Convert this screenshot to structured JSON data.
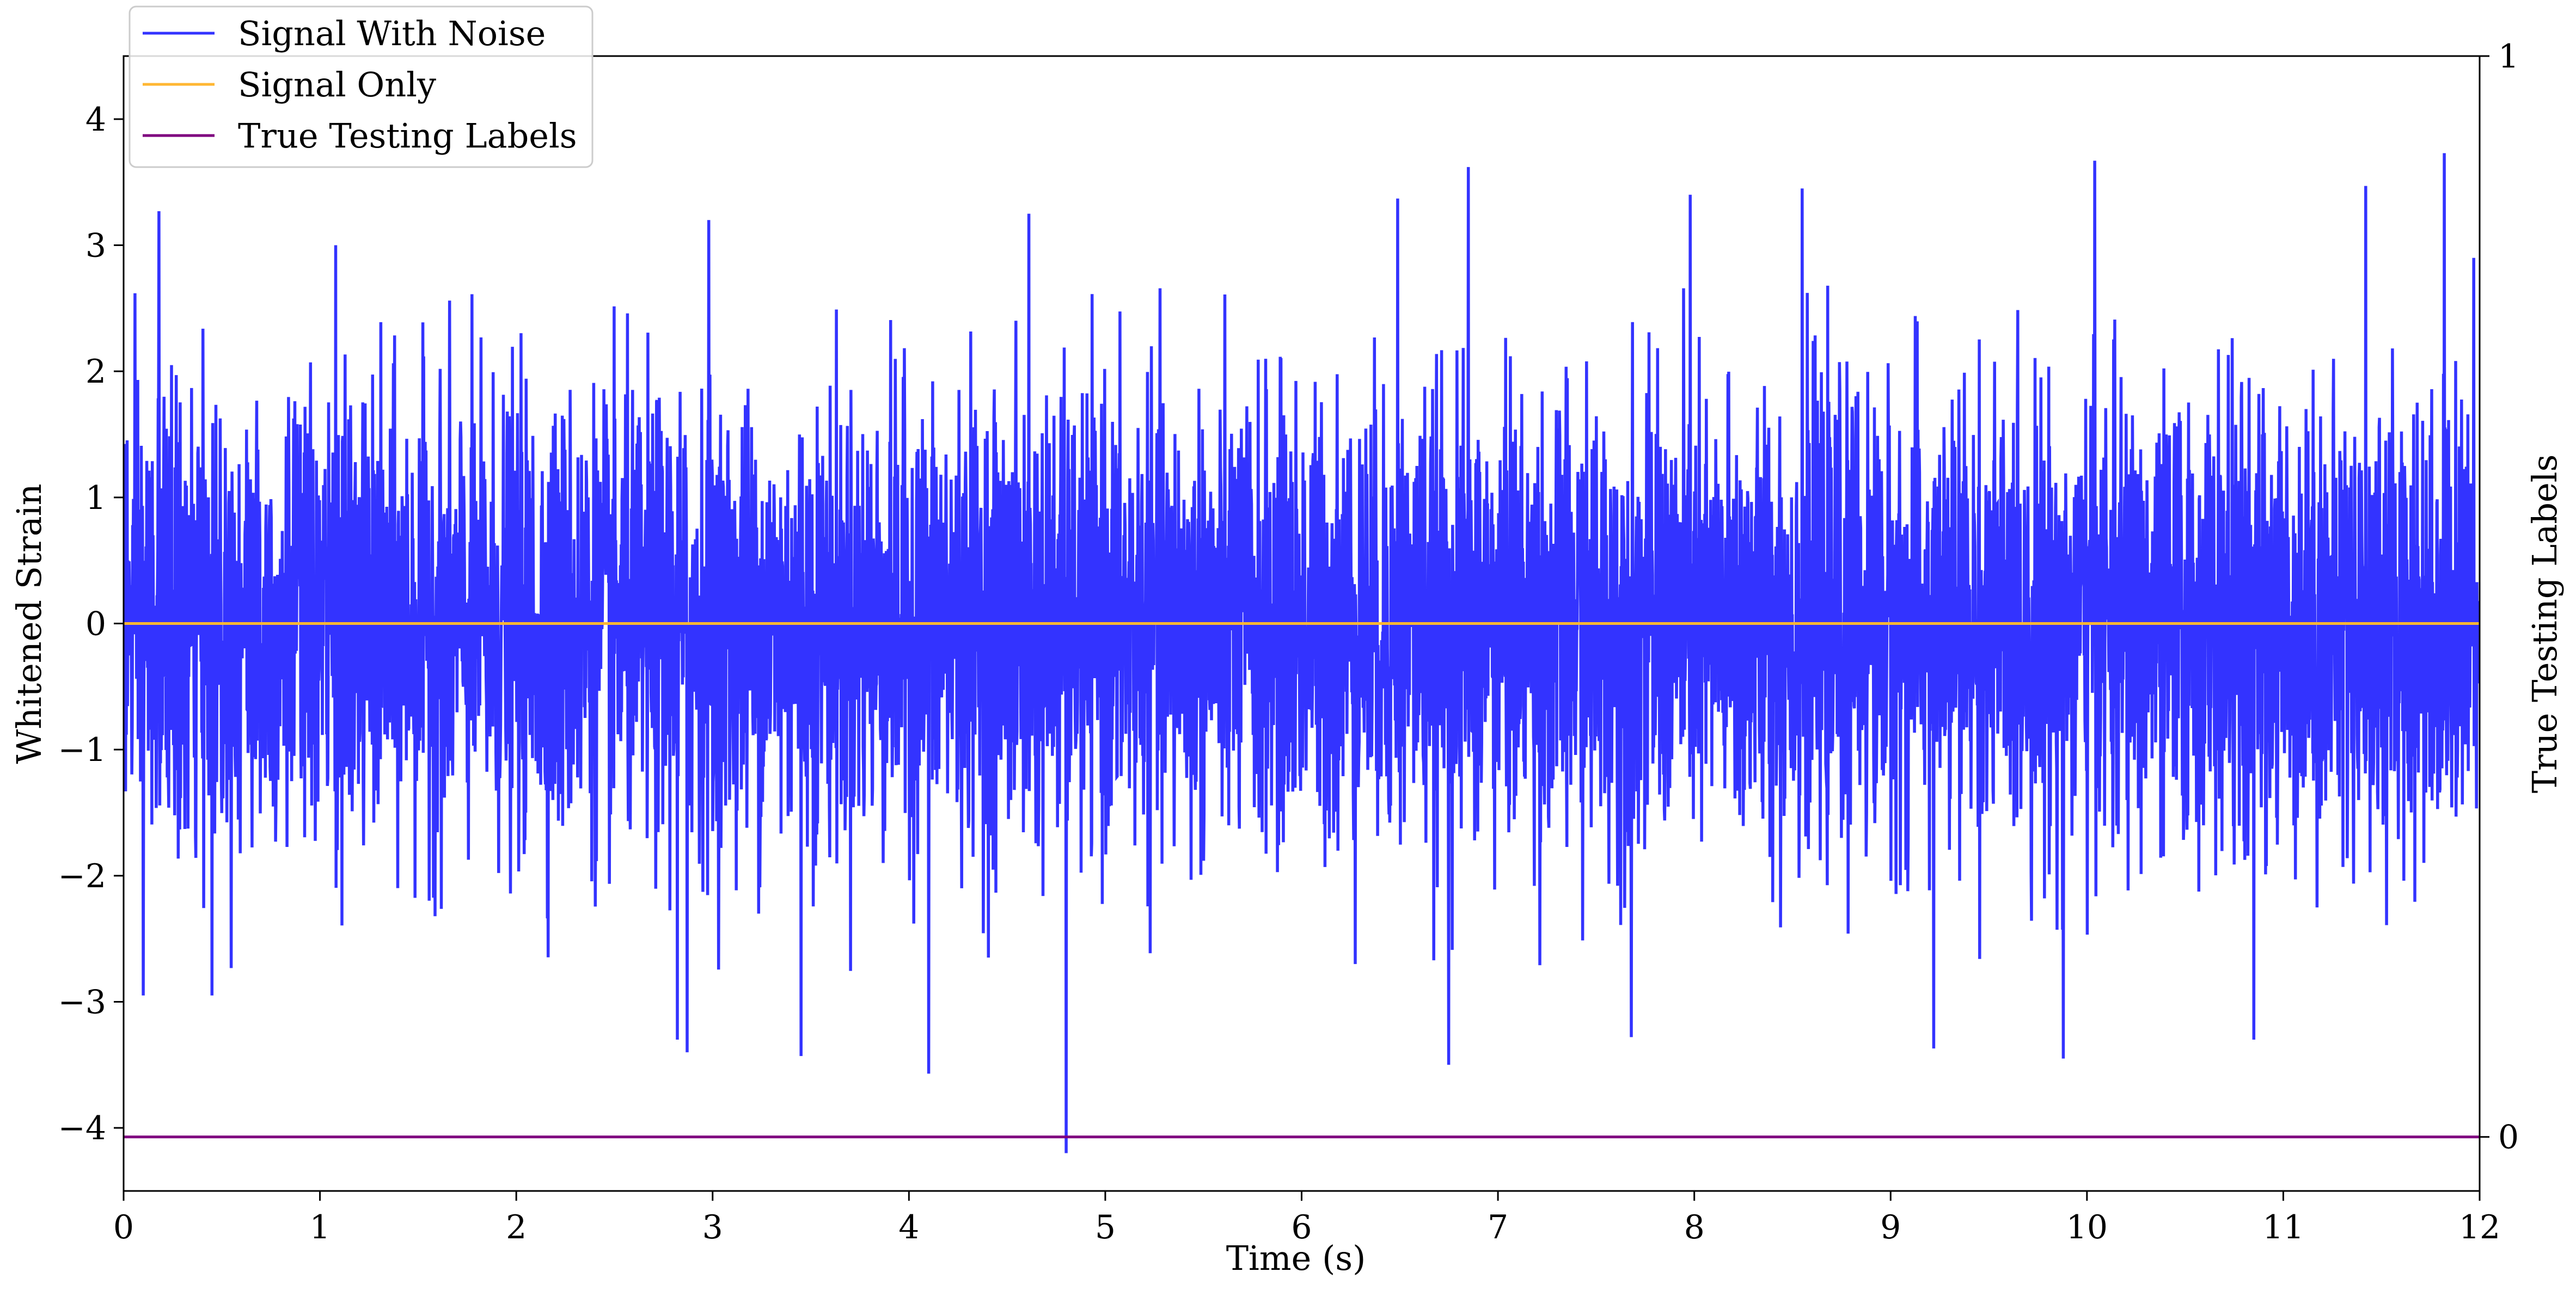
{
  "chart_data": {
    "type": "line",
    "xlabel": "Time (s)",
    "ylabel": "Whitened Strain",
    "ylabel_right": "True Testing Labels",
    "xlim": [
      0,
      12
    ],
    "ylim": [
      -4.5,
      4.5
    ],
    "ylim_right": [
      -0.05,
      1
    ],
    "x_ticks": [
      0,
      1,
      2,
      3,
      4,
      5,
      6,
      7,
      8,
      9,
      10,
      11,
      12
    ],
    "x_tick_labels": [
      "0",
      "1",
      "2",
      "3",
      "4",
      "5",
      "6",
      "7",
      "8",
      "9",
      "10",
      "11",
      "12"
    ],
    "y_ticks": [
      -4,
      -3,
      -2,
      -1,
      0,
      1,
      2,
      3,
      4
    ],
    "y_tick_labels": [
      "−4",
      "−3",
      "−2",
      "−1",
      "0",
      "1",
      "2",
      "3",
      "4"
    ],
    "y_right_ticks": [
      0,
      1
    ],
    "y_right_tick_labels": [
      "0",
      "1"
    ],
    "legend_position": "top-left",
    "grid": false,
    "series": [
      {
        "name": "Signal With Noise",
        "color": "#3333ff",
        "description_of_values": "dense noise-like whitened strain, approx. N(0, 0.9), spanning roughly -4.2 to 3.7",
        "x_range": [
          0,
          12
        ],
        "typical_range": [
          -2.2,
          2.4
        ],
        "peaks": [
          {
            "x": 0.18,
            "y": 3.27
          },
          {
            "x": 1.08,
            "y": 3.0
          },
          {
            "x": 2.98,
            "y": 3.2
          },
          {
            "x": 4.61,
            "y": 3.25
          },
          {
            "x": 6.49,
            "y": 3.37
          },
          {
            "x": 6.85,
            "y": 3.62
          },
          {
            "x": 7.98,
            "y": 3.4
          },
          {
            "x": 8.55,
            "y": 3.45
          },
          {
            "x": 10.04,
            "y": 3.67
          },
          {
            "x": 11.42,
            "y": 3.47
          },
          {
            "x": 11.82,
            "y": 3.73
          },
          {
            "x": 11.97,
            "y": 2.9
          }
        ],
        "troughs": [
          {
            "x": 0.1,
            "y": -2.95
          },
          {
            "x": 0.45,
            "y": -2.95
          },
          {
            "x": 2.82,
            "y": -3.3
          },
          {
            "x": 2.87,
            "y": -3.4
          },
          {
            "x": 3.45,
            "y": -3.43
          },
          {
            "x": 4.1,
            "y": -3.57
          },
          {
            "x": 4.8,
            "y": -4.2
          },
          {
            "x": 6.75,
            "y": -3.5
          },
          {
            "x": 7.68,
            "y": -3.28
          },
          {
            "x": 9.22,
            "y": -3.37
          },
          {
            "x": 9.88,
            "y": -3.45
          },
          {
            "x": 10.85,
            "y": -3.3
          }
        ]
      },
      {
        "name": "Signal Only",
        "color": "#ffb733",
        "x": [
          0,
          12
        ],
        "y": [
          0,
          0
        ]
      },
      {
        "name": "True Testing Labels",
        "color": "#7f007f",
        "axis": "right",
        "x": [
          0,
          12
        ],
        "y": [
          0,
          0
        ]
      }
    ]
  }
}
